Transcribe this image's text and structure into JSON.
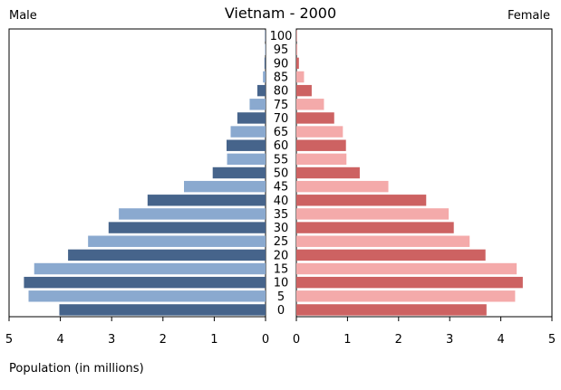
{
  "chart_data": {
    "type": "bar",
    "title": "Vietnam - 2000",
    "left_label": "Male",
    "right_label": "Female",
    "xlabel": "Population (in millions)",
    "xlim": [
      0,
      5
    ],
    "x_ticks": [
      "0",
      "1",
      "2",
      "3",
      "4",
      "5"
    ],
    "categories": [
      "0",
      "5",
      "10",
      "15",
      "20",
      "25",
      "30",
      "35",
      "40",
      "45",
      "50",
      "55",
      "60",
      "65",
      "70",
      "75",
      "80",
      "85",
      "90",
      "95",
      "100"
    ],
    "series": [
      {
        "name": "Male",
        "values": [
          4.02,
          4.62,
          4.71,
          4.51,
          3.85,
          3.46,
          3.06,
          2.86,
          2.3,
          1.59,
          1.03,
          0.75,
          0.76,
          0.68,
          0.55,
          0.31,
          0.16,
          0.05,
          0.02,
          0.01,
          0.01
        ]
      },
      {
        "name": "Female",
        "values": [
          3.72,
          4.28,
          4.43,
          4.31,
          3.7,
          3.39,
          3.08,
          2.98,
          2.54,
          1.8,
          1.24,
          0.98,
          0.97,
          0.91,
          0.74,
          0.54,
          0.3,
          0.15,
          0.05,
          0.02,
          0.01
        ]
      }
    ],
    "colors": {
      "male_dark": "#46648b",
      "male_light": "#8aa9cf",
      "female_dark": "#cd6262",
      "female_light": "#f4aaaa"
    },
    "grid": false,
    "legend": "none"
  }
}
